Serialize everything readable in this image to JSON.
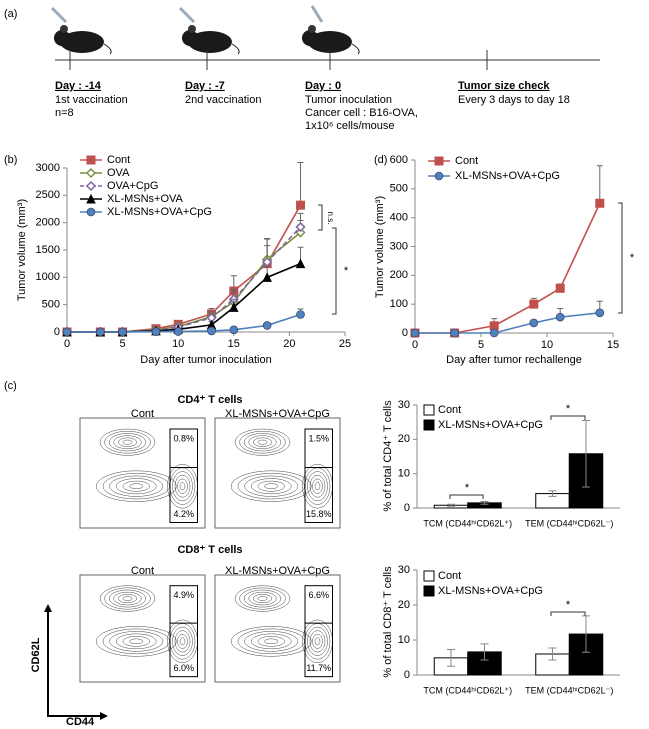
{
  "panel_labels": [
    "(a)",
    "(b)",
    "(c)",
    "(d)"
  ],
  "timeline": {
    "events": [
      {
        "day": "Day : -14",
        "lines": [
          "1st vaccination",
          "n=8"
        ]
      },
      {
        "day": "Day : -7",
        "lines": [
          "2nd vaccination"
        ]
      },
      {
        "day": "Day : 0",
        "lines": [
          "Tumor inoculation",
          "Cancer cell : B16-OVA,",
          "1x10⁶ cells/mouse"
        ]
      },
      {
        "day": "Tumor size check",
        "lines": [
          "Every 3 days to day 18"
        ]
      }
    ]
  },
  "flow_plots": {
    "x_label": "CD44",
    "y_label": "CD62L",
    "groups": [
      {
        "title": "CD4⁺ T cells",
        "panels": [
          {
            "label": "Cont",
            "upper": "0.8%",
            "lower": "4.2%"
          },
          {
            "label": "XL-MSNs+OVA+CpG",
            "upper": "1.5%",
            "lower": "15.8%"
          }
        ]
      },
      {
        "title": "CD8⁺ T cells",
        "panels": [
          {
            "label": "Cont",
            "upper": "4.9%",
            "lower": "6.0%"
          },
          {
            "label": "XL-MSNs+OVA+CpG",
            "upper": "6.6%",
            "lower": "11.7%"
          }
        ]
      }
    ]
  },
  "chart_data": [
    {
      "type": "line",
      "y_label": "Tumor volume (mm³)",
      "x_label": "Day after tumor inoculation",
      "x": [
        0,
        3,
        5,
        8,
        10,
        13,
        15,
        18,
        21
      ],
      "xlim": [
        0,
        25
      ],
      "xticks": [
        0,
        5,
        10,
        15,
        20,
        25
      ],
      "ylim": [
        0,
        3000
      ],
      "yticks": [
        0,
        500,
        1000,
        1500,
        2000,
        2500,
        3000
      ],
      "series": [
        {
          "name": "Cont",
          "color": "#c0504d",
          "marker": "square",
          "values": [
            0,
            0,
            0,
            60,
            140,
            330,
            750,
            1250,
            2320
          ],
          "errors": [
            0,
            0,
            0,
            20,
            40,
            100,
            280,
            450,
            780
          ]
        },
        {
          "name": "OVA",
          "color": "#77933c",
          "marker": "diamond",
          "values": [
            0,
            0,
            0,
            40,
            100,
            280,
            550,
            1330,
            1820
          ],
          "errors": [
            0,
            0,
            0,
            15,
            30,
            90,
            200,
            380,
            350
          ]
        },
        {
          "name": "OVA+CpG",
          "color": "#8064a2",
          "marker": "diamond",
          "dashed": true,
          "values": [
            0,
            0,
            0,
            30,
            90,
            260,
            600,
            1280,
            1920
          ],
          "errors": [
            0,
            0,
            0,
            10,
            30,
            80,
            180,
            300,
            120
          ]
        },
        {
          "name": "XL-MSNs+OVA",
          "color": "#000000",
          "marker": "triangle",
          "values": [
            0,
            0,
            0,
            20,
            50,
            130,
            450,
            1000,
            1250
          ],
          "errors": [
            0,
            0,
            0,
            10,
            20,
            60,
            150,
            200,
            300
          ]
        },
        {
          "name": "XL-MSNs+OVA+CpG",
          "color": "#4f81bd",
          "marker": "circle",
          "values": [
            0,
            0,
            0,
            5,
            10,
            20,
            40,
            120,
            320
          ],
          "errors": [
            0,
            0,
            0,
            3,
            5,
            10,
            15,
            30,
            100
          ]
        }
      ],
      "annotations": [
        "n.s.",
        "*"
      ]
    },
    {
      "type": "line",
      "y_label": "Tumor volume (mm³)",
      "x_label": "Day after tumor rechallenge",
      "x": [
        0,
        3,
        6,
        9,
        11,
        14
      ],
      "xlim": [
        0,
        15
      ],
      "xticks": [
        0,
        5,
        10,
        15
      ],
      "ylim": [
        0,
        600
      ],
      "yticks": [
        0,
        100,
        200,
        300,
        400,
        500,
        600
      ],
      "series": [
        {
          "name": "Cont",
          "color": "#c0504d",
          "marker": "square",
          "values": [
            0,
            0,
            25,
            100,
            155,
            450
          ],
          "errors": [
            0,
            0,
            25,
            20,
            15,
            130
          ]
        },
        {
          "name": "XL-MSNs+OVA+CpG",
          "color": "#4f81bd",
          "marker": "circle",
          "values": [
            0,
            0,
            0,
            35,
            55,
            70
          ],
          "errors": [
            0,
            0,
            0,
            10,
            30,
            40
          ]
        }
      ],
      "annotations": [
        "*"
      ]
    },
    {
      "type": "bar",
      "y_label": "% of total CD4⁺ T cells",
      "categories": [
        "TCM (CD44ʰⁱCD62L⁺)",
        "TEM (CD44ʰⁱCD62L⁻)"
      ],
      "ylim": [
        0,
        30
      ],
      "yticks": [
        0,
        10,
        20,
        30
      ],
      "series": [
        {
          "name": "Cont",
          "color": "#ffffff",
          "values": [
            0.8,
            4.2
          ],
          "errors": [
            0.3,
            0.8
          ]
        },
        {
          "name": "XL-MSNs+OVA+CpG",
          "color": "#000000",
          "values": [
            1.5,
            15.8
          ],
          "errors": [
            0.4,
            9.7
          ]
        }
      ],
      "annotations": [
        "*",
        "*"
      ]
    },
    {
      "type": "bar",
      "y_label": "% of total CD8⁺ T cells",
      "categories": [
        "TCM (CD44ʰⁱCD62L⁺)",
        "TEM (CD44ʰⁱCD62L⁻)"
      ],
      "ylim": [
        0,
        30
      ],
      "yticks": [
        0,
        10,
        20,
        30
      ],
      "series": [
        {
          "name": "Cont",
          "color": "#ffffff",
          "values": [
            4.9,
            6.0
          ],
          "errors": [
            2.4,
            1.7
          ]
        },
        {
          "name": "XL-MSNs+OVA+CpG",
          "color": "#000000",
          "values": [
            6.6,
            11.7
          ],
          "errors": [
            2.3,
            5.2
          ]
        }
      ],
      "annotations": [
        "*"
      ]
    }
  ]
}
